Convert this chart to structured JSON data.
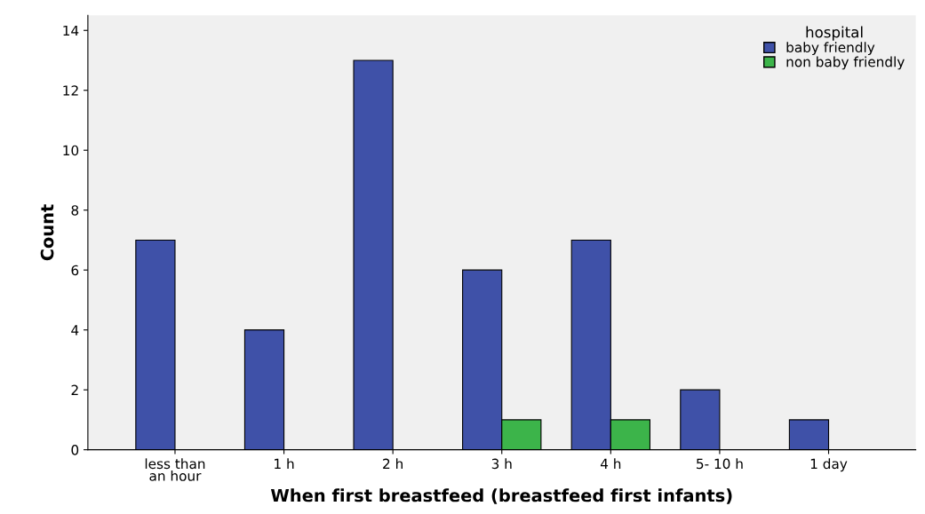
{
  "chart_data": {
    "type": "bar",
    "xlabel": "When first breastfeed (breastfeed first infants)",
    "ylabel": "Count",
    "categories": [
      "less than\nan hour",
      "1 h",
      "2 h",
      "3 h",
      "4 h",
      "5- 10 h",
      "1 day"
    ],
    "series": [
      {
        "name": "baby friendly",
        "color": "#3f51a8",
        "values": [
          7,
          4,
          13,
          6,
          7,
          2,
          1
        ]
      },
      {
        "name": "non baby friendly",
        "color": "#3cb44a",
        "values": [
          null,
          null,
          null,
          1,
          1,
          null,
          null
        ]
      }
    ],
    "legend_title": "hospital",
    "legend": "top right",
    "grid": false,
    "ylim": [
      0,
      14.5
    ],
    "yticks": [
      0,
      2,
      4,
      6,
      8,
      10,
      12,
      14
    ]
  }
}
